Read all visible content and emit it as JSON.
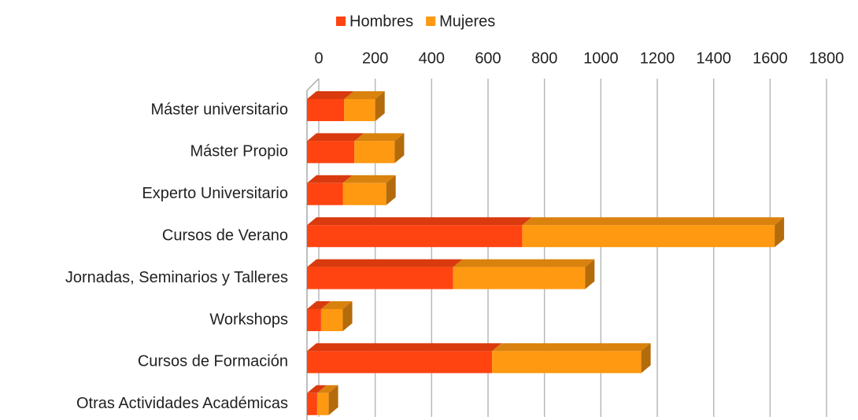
{
  "chart_data": {
    "type": "bar",
    "orientation": "horizontal",
    "stacked": true,
    "categories": [
      "Máster universitario",
      "Máster Propio",
      "Experto Universitario",
      "Cursos de Verano",
      "Jornadas,  Seminarios y Talleres",
      "Workshops",
      "Cursos de Formación",
      "Otras Actividades Académicas"
    ],
    "series": [
      {
        "name": "Hombres",
        "color": "#ff4411",
        "values": [
          132,
          168,
          127,
          763,
          518,
          50,
          656,
          36
        ]
      },
      {
        "name": "Mujeres",
        "color": "#ff9911",
        "values": [
          110,
          143,
          154,
          895,
          468,
          77,
          529,
          41
        ]
      }
    ],
    "xlim": [
      0,
      1800
    ],
    "xticks": [
      0,
      200,
      400,
      600,
      800,
      1000,
      1200,
      1400,
      1600,
      1800
    ],
    "grid": true,
    "legend": "top"
  }
}
